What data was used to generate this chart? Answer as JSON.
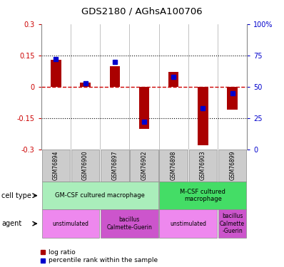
{
  "title": "GDS2180 / AGhsA100706",
  "samples": [
    "GSM76894",
    "GSM76900",
    "GSM76897",
    "GSM76902",
    "GSM76898",
    "GSM76903",
    "GSM76899"
  ],
  "log_ratio": [
    0.13,
    0.02,
    0.1,
    -0.2,
    0.07,
    -0.28,
    -0.11
  ],
  "percentile_rank": [
    72,
    53,
    70,
    22,
    58,
    33,
    45
  ],
  "ylim_left": [
    -0.3,
    0.3
  ],
  "ylim_right": [
    0,
    100
  ],
  "yticks_left": [
    -0.3,
    -0.15,
    0,
    0.15,
    0.3
  ],
  "yticks_right": [
    0,
    25,
    50,
    75,
    100
  ],
  "ytick_labels_left": [
    "-0.3",
    "-0.15",
    "0",
    "0.15",
    "0.3"
  ],
  "ytick_labels_right": [
    "0",
    "25",
    "50",
    "75",
    "100%"
  ],
  "hlines": [
    0.15,
    -0.15
  ],
  "bar_color_red": "#aa0000",
  "bar_color_blue": "#0000cc",
  "zero_line_color": "#cc0000",
  "hline_color": "#000000",
  "cell_type_groups": [
    {
      "label": "GM-CSF cultured macrophage",
      "start": 0,
      "end": 4,
      "color": "#aaeebb"
    },
    {
      "label": "M-CSF cultured\nmacrophage",
      "start": 4,
      "end": 7,
      "color": "#44dd66"
    }
  ],
  "agent_groups": [
    {
      "label": "unstimulated",
      "start": 0,
      "end": 2,
      "color": "#ee88ee"
    },
    {
      "label": "bacillus\nCalmette-Guerin",
      "start": 2,
      "end": 4,
      "color": "#cc55cc"
    },
    {
      "label": "unstimulated",
      "start": 4,
      "end": 6,
      "color": "#ee88ee"
    },
    {
      "label": "bacillus\nCalmette\n-Guerin",
      "start": 6,
      "end": 7,
      "color": "#cc55cc"
    }
  ],
  "legend_red": "log ratio",
  "legend_blue": "percentile rank within the sample",
  "cell_type_label": "cell type",
  "agent_label": "agent",
  "background_color": "#ffffff",
  "sample_box_color": "#cccccc",
  "tick_color_left": "#cc0000",
  "tick_color_right": "#0000cc"
}
